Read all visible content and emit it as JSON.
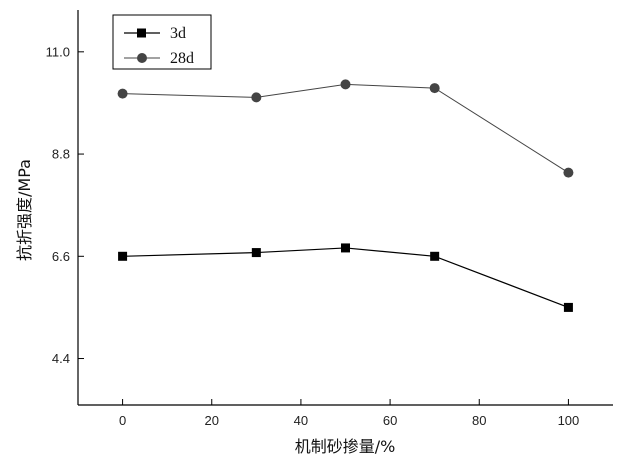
{
  "chart_data": {
    "type": "line",
    "x": [
      0,
      30,
      50,
      70,
      100
    ],
    "xlim": [
      -10,
      110
    ],
    "ylim": [
      3.4,
      11.9
    ],
    "x_ticks": [
      0,
      20,
      40,
      60,
      80,
      100
    ],
    "y_ticks": [
      4.4,
      6.6,
      8.8,
      11.0
    ],
    "x_tick_labels": [
      "0",
      "20",
      "40",
      "60",
      "80",
      "100"
    ],
    "y_tick_labels": [
      "4.4",
      "6.6",
      "8.8",
      "11.0"
    ],
    "xlabel": "机制砂掺量/%",
    "ylabel": "抗折强度/MPa",
    "grid": false,
    "legend_position": "top-left",
    "series": [
      {
        "name": "3d",
        "marker": "square",
        "values": [
          6.6,
          6.68,
          6.78,
          6.6,
          5.5
        ],
        "color": "#000000"
      },
      {
        "name": "28d",
        "marker": "circle",
        "values": [
          10.1,
          10.02,
          10.3,
          10.22,
          8.4
        ],
        "color": "#444444"
      }
    ]
  }
}
